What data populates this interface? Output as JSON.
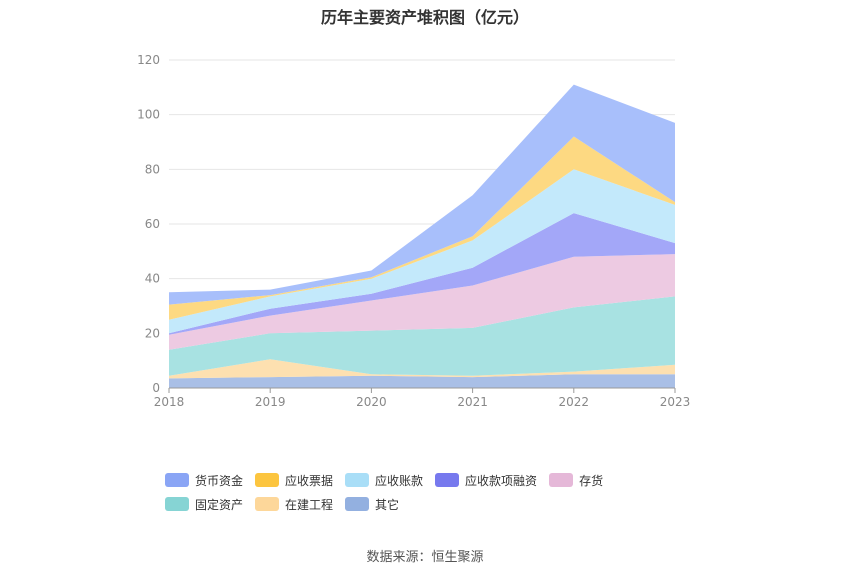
{
  "chart_data": {
    "type": "area",
    "title": "历年主要资产堆积图（亿元）",
    "source": "数据来源：恒生聚源",
    "x": [
      "2018",
      "2019",
      "2020",
      "2021",
      "2022",
      "2023"
    ],
    "ylim": [
      0,
      120
    ],
    "yticks": [
      "0",
      "20",
      "40",
      "60",
      "80",
      "100",
      "120"
    ],
    "grid": true,
    "stacked": true,
    "legend_position": "bottom",
    "series": [
      {
        "name": "其它",
        "values": [
          3.5,
          4.0,
          4.5,
          4.0,
          5.0,
          5.0
        ],
        "color": "#a9bfe6"
      },
      {
        "name": "在建工程",
        "values": [
          1.0,
          6.5,
          0.5,
          0.5,
          1.0,
          3.5
        ],
        "color": "#fde0b0"
      },
      {
        "name": "固定资产",
        "values": [
          9.5,
          9.5,
          16.0,
          17.5,
          23.5,
          25.0
        ],
        "color": "#a8e2e2"
      },
      {
        "name": "存货",
        "values": [
          5.5,
          6.5,
          11.0,
          15.5,
          18.5,
          15.5
        ],
        "color": "#edcae2"
      },
      {
        "name": "应收款项融资",
        "values": [
          0.5,
          2.5,
          2.5,
          6.5,
          16.0,
          4.0
        ],
        "color": "#a3a7f8"
      },
      {
        "name": "应收账款",
        "values": [
          5.0,
          4.5,
          5.5,
          10.0,
          16.0,
          14.0
        ],
        "color": "#c3e9fb"
      },
      {
        "name": "应收票据",
        "values": [
          5.5,
          0.5,
          0.5,
          1.5,
          12.0,
          1.0
        ],
        "color": "#fdd982"
      },
      {
        "name": "货币资金",
        "values": [
          4.5,
          2.0,
          2.5,
          15.0,
          19.0,
          29.0
        ],
        "color": "#a8bffb"
      }
    ],
    "legend": [
      {
        "name": "货币资金",
        "color": "#8aa5f5"
      },
      {
        "name": "应收票据",
        "color": "#fcc53f"
      },
      {
        "name": "应收账款",
        "color": "#a9def7"
      },
      {
        "name": "应收款项融资",
        "color": "#7779ee"
      },
      {
        "name": "存货",
        "color": "#e5b8d8"
      },
      {
        "name": "固定资产",
        "color": "#86d4d4"
      },
      {
        "name": "在建工程",
        "color": "#fdd79a"
      },
      {
        "name": "其它",
        "color": "#93b0e0"
      }
    ]
  }
}
